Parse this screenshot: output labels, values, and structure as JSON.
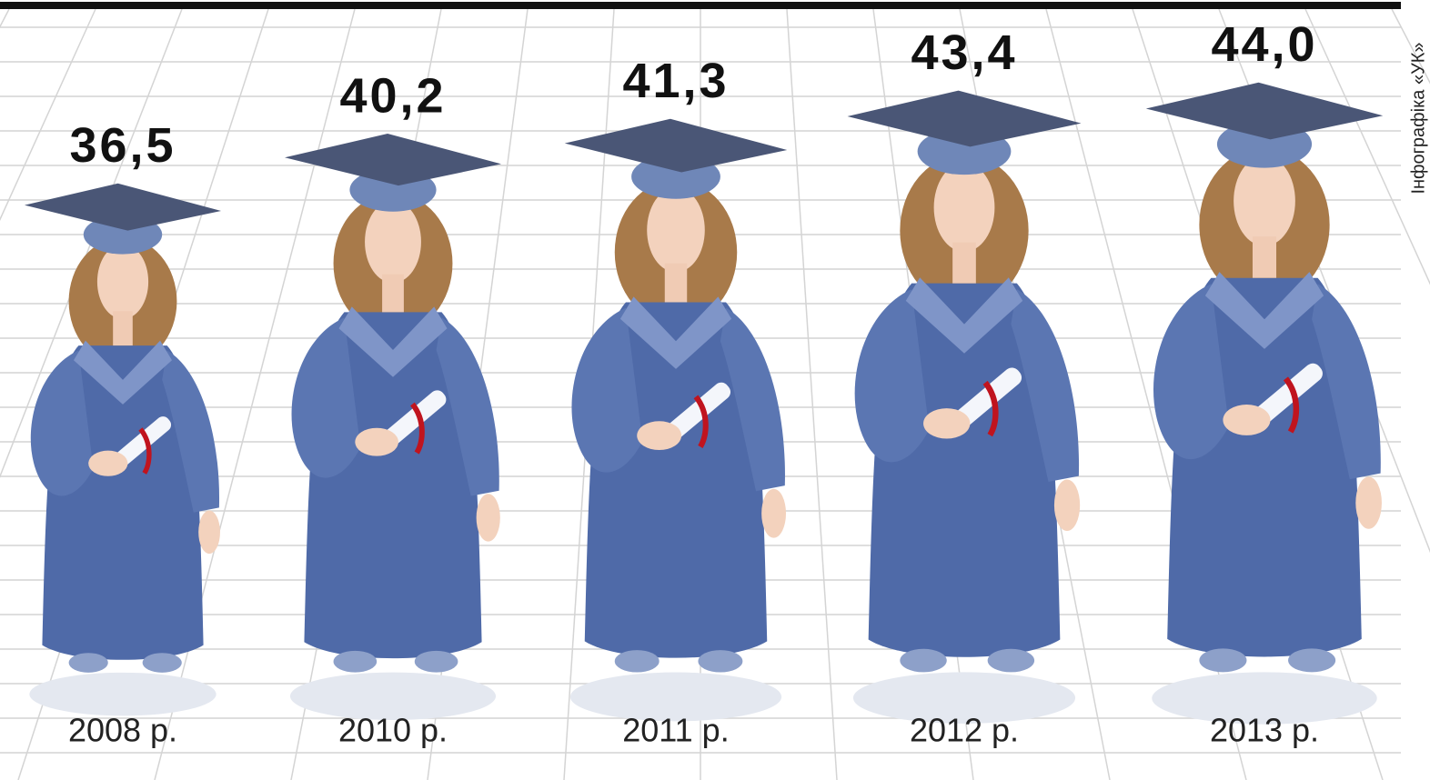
{
  "chart_data": {
    "type": "bar",
    "categories": [
      "2008 р.",
      "2010 р.",
      "2011 р.",
      "2012 р.",
      "2013 р."
    ],
    "values": [
      36.5,
      40.2,
      41.3,
      43.4,
      44.0
    ],
    "value_labels": [
      "36,5",
      "40,2",
      "41,3",
      "43,4",
      "44,0"
    ],
    "color": "#4f6aa8",
    "credit": "Інфографіка «УК»"
  }
}
